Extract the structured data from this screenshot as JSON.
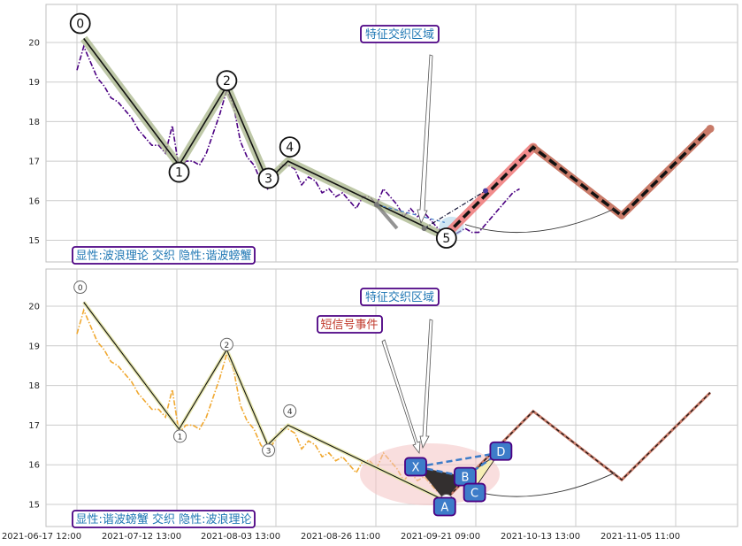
{
  "chart_data": [
    {
      "type": "line",
      "panel": "top",
      "title": "",
      "xlabel": "",
      "ylabel": "",
      "ylim": [
        14.45,
        20.95
      ],
      "yticks": [
        15,
        16,
        17,
        18,
        19,
        20
      ],
      "grid": true,
      "price_series": {
        "name": "",
        "color": "#4b0082",
        "points": [
          [
            0,
            19.3
          ],
          [
            1,
            19.9
          ],
          [
            2,
            19.5
          ],
          [
            3,
            19.1
          ],
          [
            4,
            18.9
          ],
          [
            5,
            18.6
          ],
          [
            6,
            18.5
          ],
          [
            7,
            18.3
          ],
          [
            8,
            18.1
          ],
          [
            9,
            17.8
          ],
          [
            10,
            17.6
          ],
          [
            11,
            17.4
          ],
          [
            12,
            17.4
          ],
          [
            13,
            17.2
          ],
          [
            14,
            17.9
          ],
          [
            15,
            16.8
          ],
          [
            16,
            17.0
          ],
          [
            17,
            17.0
          ],
          [
            18,
            16.9
          ],
          [
            19,
            17.2
          ],
          [
            20,
            17.7
          ],
          [
            21,
            18.2
          ],
          [
            22,
            18.8
          ],
          [
            23,
            18.4
          ],
          [
            24,
            17.5
          ],
          [
            25,
            17.1
          ],
          [
            26,
            16.9
          ],
          [
            27,
            16.5
          ],
          [
            28,
            16.3
          ],
          [
            29,
            16.6
          ],
          [
            30,
            16.9
          ],
          [
            31,
            16.9
          ],
          [
            32,
            16.8
          ],
          [
            33,
            16.4
          ],
          [
            34,
            16.6
          ],
          [
            35,
            16.5
          ],
          [
            36,
            16.2
          ],
          [
            37,
            16.3
          ],
          [
            38,
            16.1
          ],
          [
            39,
            16.2
          ],
          [
            40,
            16.0
          ],
          [
            41,
            15.8
          ],
          [
            42,
            16.1
          ],
          [
            43,
            16.1
          ],
          [
            44,
            15.9
          ],
          [
            45,
            16.3
          ],
          [
            46,
            16.1
          ],
          [
            47,
            15.9
          ],
          [
            48,
            15.6
          ],
          [
            49,
            15.8
          ],
          [
            50,
            15.6
          ],
          [
            51,
            15.7
          ],
          [
            52,
            15.5
          ],
          [
            53,
            15.3
          ],
          [
            54,
            15.2
          ],
          [
            55,
            15.1
          ],
          [
            56,
            15.2
          ],
          [
            57,
            15.3
          ],
          [
            58,
            15.2
          ],
          [
            59,
            15.2
          ],
          [
            60,
            15.4
          ],
          [
            61,
            15.6
          ],
          [
            62,
            15.8
          ],
          [
            63,
            16.0
          ],
          [
            64,
            16.2
          ],
          [
            65,
            16.3
          ]
        ]
      },
      "wave_points": [
        {
          "label": "0",
          "x": 1,
          "y": 20.1
        },
        {
          "label": "1",
          "x": 15,
          "y": 16.9
        },
        {
          "label": "2",
          "x": 22,
          "y": 18.9
        },
        {
          "label": "3",
          "x": 28,
          "y": 16.5
        },
        {
          "label": "4",
          "x": 31,
          "y": 17.0
        },
        {
          "label": "5",
          "x": 54,
          "y": 15.1
        }
      ],
      "projection": {
        "color_pink": "#f08080",
        "color_brown": "#c87a68",
        "points": [
          [
            54,
            15.1
          ],
          [
            67,
            17.35
          ],
          [
            80,
            15.62
          ],
          [
            93,
            17.82
          ]
        ]
      },
      "curve": {
        "points": [
          [
            57,
            15.4
          ],
          [
            62,
            15.3
          ],
          [
            67,
            15.22
          ],
          [
            73,
            15.4
          ],
          [
            79,
            15.8
          ]
        ]
      },
      "annotations": [
        {
          "text": "特征交织区域",
          "color": "#1f77b4",
          "border": "#4b0082"
        },
        {
          "text": "显性:波浪理论 交织 隐性:谐波螃蟹",
          "color": "#1f77b4",
          "border": "#4b0082"
        }
      ]
    },
    {
      "type": "line",
      "panel": "bottom",
      "title": "",
      "xlabel": "",
      "ylabel": "",
      "ylim": [
        14.45,
        20.95
      ],
      "yticks": [
        15,
        16,
        17,
        18,
        19,
        20
      ],
      "x_tick_labels": [
        "2021-06-17 12:00",
        "2021-07-12 13:00",
        "2021-08-03 13:00",
        "2021-08-26 11:00",
        "2021-09-21 09:00",
        "2021-10-13 13:00",
        "2021-11-05 11:00"
      ],
      "grid": true,
      "price_series": {
        "name": "",
        "color": "#f0a830",
        "points": [
          [
            0,
            19.3
          ],
          [
            1,
            19.9
          ],
          [
            2,
            19.5
          ],
          [
            3,
            19.1
          ],
          [
            4,
            18.9
          ],
          [
            5,
            18.6
          ],
          [
            6,
            18.5
          ],
          [
            7,
            18.3
          ],
          [
            8,
            18.1
          ],
          [
            9,
            17.8
          ],
          [
            10,
            17.6
          ],
          [
            11,
            17.4
          ],
          [
            12,
            17.4
          ],
          [
            13,
            17.2
          ],
          [
            14,
            17.9
          ],
          [
            15,
            16.8
          ],
          [
            16,
            17.0
          ],
          [
            17,
            17.0
          ],
          [
            18,
            16.9
          ],
          [
            19,
            17.2
          ],
          [
            20,
            17.7
          ],
          [
            21,
            18.2
          ],
          [
            22,
            18.8
          ],
          [
            23,
            18.4
          ],
          [
            24,
            17.5
          ],
          [
            25,
            17.1
          ],
          [
            26,
            16.9
          ],
          [
            27,
            16.5
          ],
          [
            28,
            16.3
          ],
          [
            29,
            16.6
          ],
          [
            30,
            16.9
          ],
          [
            31,
            16.9
          ],
          [
            32,
            16.8
          ],
          [
            33,
            16.4
          ],
          [
            34,
            16.6
          ],
          [
            35,
            16.5
          ],
          [
            36,
            16.2
          ],
          [
            37,
            16.3
          ],
          [
            38,
            16.1
          ],
          [
            39,
            16.2
          ],
          [
            40,
            16.0
          ],
          [
            41,
            15.8
          ],
          [
            42,
            16.1
          ],
          [
            43,
            16.1
          ],
          [
            44,
            15.9
          ],
          [
            45,
            16.3
          ],
          [
            46,
            16.1
          ],
          [
            47,
            15.9
          ],
          [
            48,
            15.6
          ],
          [
            49,
            15.8
          ],
          [
            50,
            15.6
          ],
          [
            51,
            15.7
          ],
          [
            52,
            15.5
          ],
          [
            53,
            15.3
          ]
        ]
      },
      "wave_points": [
        {
          "label": "0",
          "x": 1,
          "y": 20.1
        },
        {
          "label": "1",
          "x": 15,
          "y": 16.9
        },
        {
          "label": "2",
          "x": 22,
          "y": 18.9
        },
        {
          "label": "3",
          "x": 28,
          "y": 16.5
        },
        {
          "label": "4",
          "x": 31,
          "y": 17.0
        },
        {
          "label": "5",
          "x": 54,
          "y": 15.1
        }
      ],
      "harmonic_points": [
        {
          "label": "X",
          "x": 50,
          "y": 15.95
        },
        {
          "label": "A",
          "x": 54,
          "y": 15.1
        },
        {
          "label": "B",
          "x": 57,
          "y": 15.7
        },
        {
          "label": "C",
          "x": 58,
          "y": 15.3
        },
        {
          "label": "D",
          "x": 62,
          "y": 16.3
        }
      ],
      "projection": {
        "color": "#c87a68",
        "points": [
          [
            54,
            15.1
          ],
          [
            67,
            17.35
          ],
          [
            80,
            15.62
          ],
          [
            93,
            17.82
          ]
        ]
      },
      "annotations": [
        {
          "text": "特征交织区域",
          "color": "#1f77b4",
          "border": "#4b0082"
        },
        {
          "text": "短信号事件",
          "color": "#c0392b",
          "border": "#4b0082"
        },
        {
          "text": "显性:谐波螃蟹 交织 隐性:波浪理论",
          "color": "#1f77b4",
          "border": "#4b0082"
        }
      ]
    }
  ]
}
